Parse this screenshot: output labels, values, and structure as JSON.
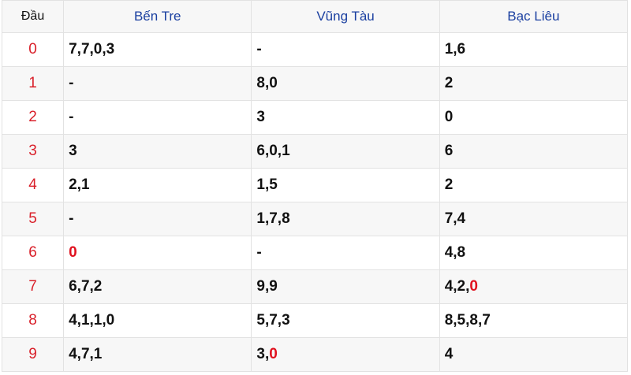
{
  "header": {
    "dau": "Đầu",
    "provinces": [
      "Bến Tre",
      "Vũng Tàu",
      "Bạc Liêu"
    ]
  },
  "colors": {
    "head_digit": "#d9202a",
    "highlight": "#e0121f",
    "province": "#1a3fa0"
  },
  "rows": [
    {
      "head": "0",
      "cells": [
        [
          {
            "t": "7,7,0,3"
          }
        ],
        [
          {
            "t": "-"
          }
        ],
        [
          {
            "t": "1,6"
          }
        ]
      ]
    },
    {
      "head": "1",
      "cells": [
        [
          {
            "t": "-"
          }
        ],
        [
          {
            "t": "8,0"
          }
        ],
        [
          {
            "t": "2"
          }
        ]
      ]
    },
    {
      "head": "2",
      "cells": [
        [
          {
            "t": "-"
          }
        ],
        [
          {
            "t": "3"
          }
        ],
        [
          {
            "t": "0"
          }
        ]
      ]
    },
    {
      "head": "3",
      "cells": [
        [
          {
            "t": "3"
          }
        ],
        [
          {
            "t": "6,0,1"
          }
        ],
        [
          {
            "t": "6"
          }
        ]
      ]
    },
    {
      "head": "4",
      "cells": [
        [
          {
            "t": "2,1"
          }
        ],
        [
          {
            "t": "1,5"
          }
        ],
        [
          {
            "t": "2"
          }
        ]
      ]
    },
    {
      "head": "5",
      "cells": [
        [
          {
            "t": "-"
          }
        ],
        [
          {
            "t": "1,7,8"
          }
        ],
        [
          {
            "t": "7,4"
          }
        ]
      ]
    },
    {
      "head": "6",
      "cells": [
        [
          {
            "t": "0",
            "hl": true
          }
        ],
        [
          {
            "t": "-"
          }
        ],
        [
          {
            "t": "4,8"
          }
        ]
      ]
    },
    {
      "head": "7",
      "cells": [
        [
          {
            "t": "6,7,2"
          }
        ],
        [
          {
            "t": "9,9"
          }
        ],
        [
          {
            "t": "4,2,"
          },
          {
            "t": "0",
            "hl": true
          }
        ]
      ]
    },
    {
      "head": "8",
      "cells": [
        [
          {
            "t": "4,1,1,0"
          }
        ],
        [
          {
            "t": "5,7,3"
          }
        ],
        [
          {
            "t": "8,5,8,7"
          }
        ]
      ]
    },
    {
      "head": "9",
      "cells": [
        [
          {
            "t": "4,7,1"
          }
        ],
        [
          {
            "t": "3,"
          },
          {
            "t": "0",
            "hl": true
          }
        ],
        [
          {
            "t": "4"
          }
        ]
      ]
    }
  ]
}
